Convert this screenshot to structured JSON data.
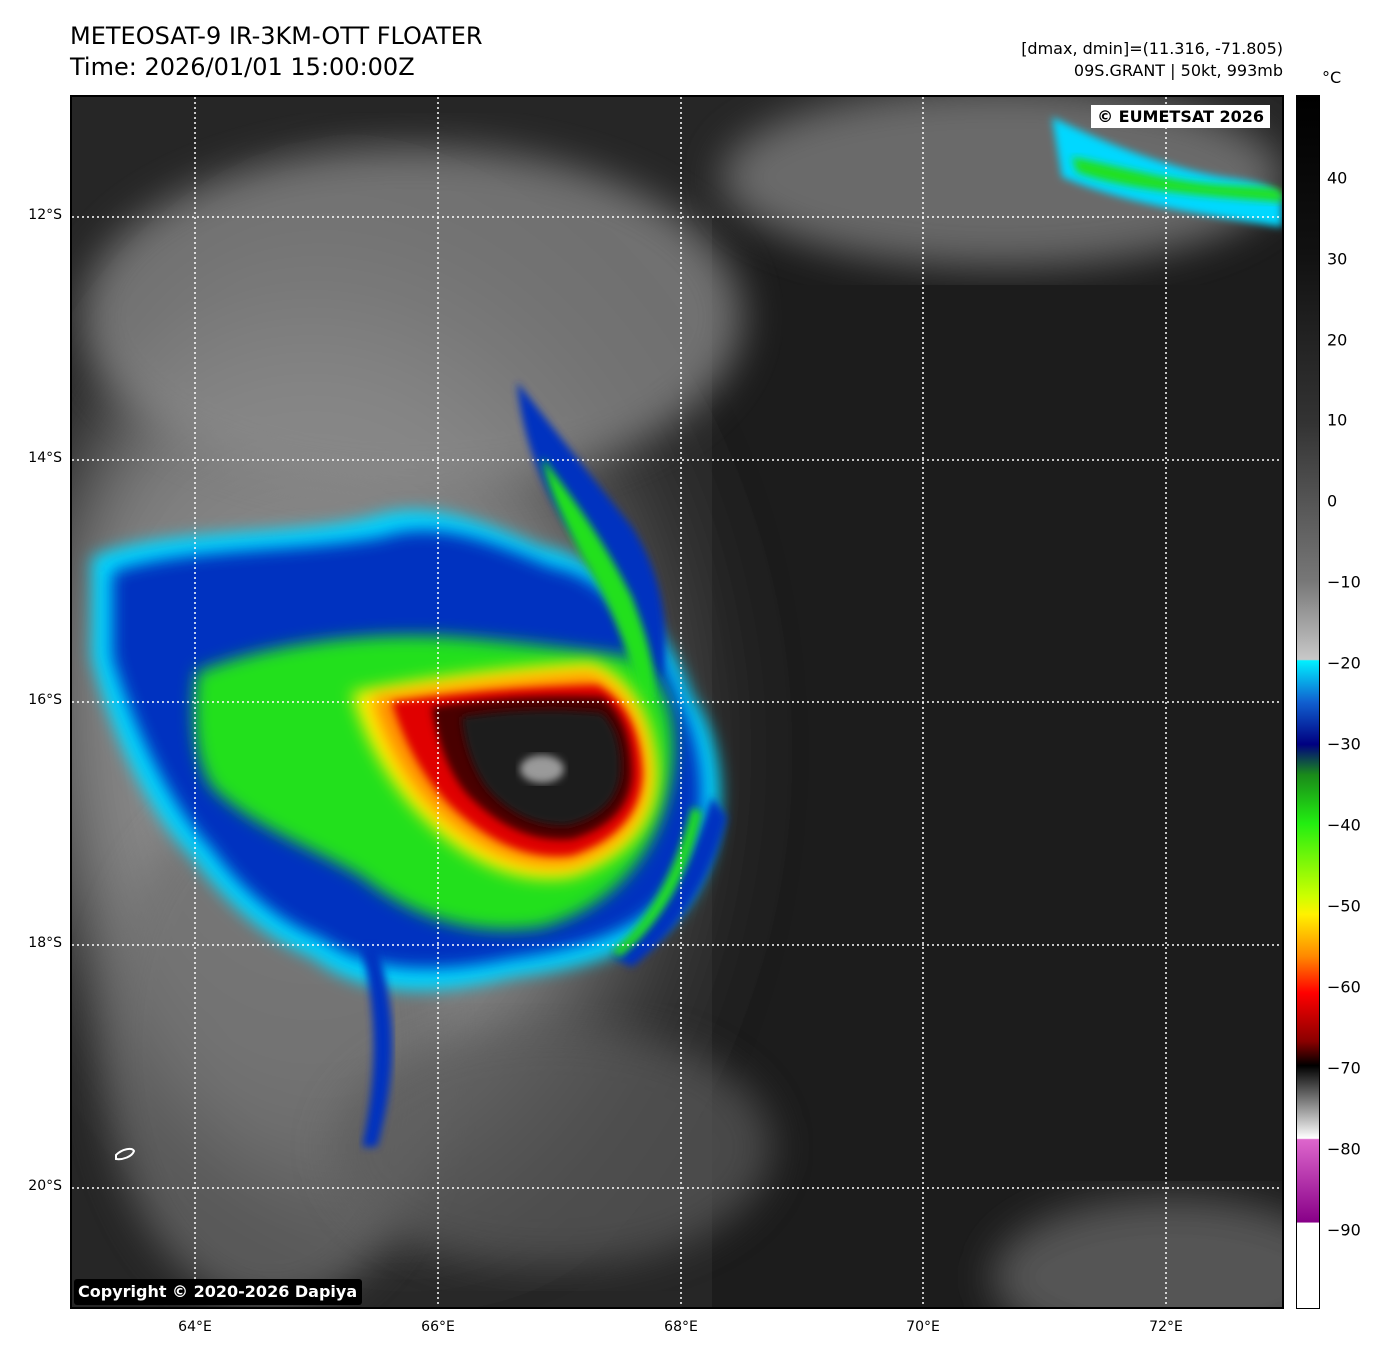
{
  "header": {
    "title_line1": "METEOSAT-9 IR-3KM-OTT FLOATER",
    "title_line2": "Time: 2026/01/01 15:00:00Z",
    "meta_line1": "[dmax, dmin]=(11.316, -71.805)",
    "meta_line2": "09S.GRANT | 50kt, 993mb"
  },
  "map": {
    "watermark_top": "© EUMETSAT 2026",
    "watermark_bottom": "Copyright © 2020-2026 Dapiya",
    "lat_labels": [
      "12°S",
      "14°S",
      "16°S",
      "18°S",
      "20°S"
    ],
    "lon_labels": [
      "64°E",
      "66°E",
      "68°E",
      "70°E",
      "72°E"
    ],
    "storm_center": {
      "lon": 66.9,
      "lat": -16.6
    },
    "colors": {
      "ocean": "#242424",
      "cirrus": "#8a8a8a",
      "cyan": "#00e5ff",
      "blue": "#0030c0",
      "green": "#22e01a",
      "yellow": "#fff200",
      "orange": "#ff8800",
      "red": "#e00000",
      "darkred": "#4a0000",
      "core": "#1a1a1a"
    }
  },
  "colorbar": {
    "unit": "°C",
    "ticks": [
      "40",
      "30",
      "20",
      "10",
      "0",
      "−10",
      "−20",
      "−30",
      "−40",
      "−50",
      "−60",
      "−70",
      "−80",
      "−90"
    ],
    "range": [
      -100,
      50
    ]
  }
}
